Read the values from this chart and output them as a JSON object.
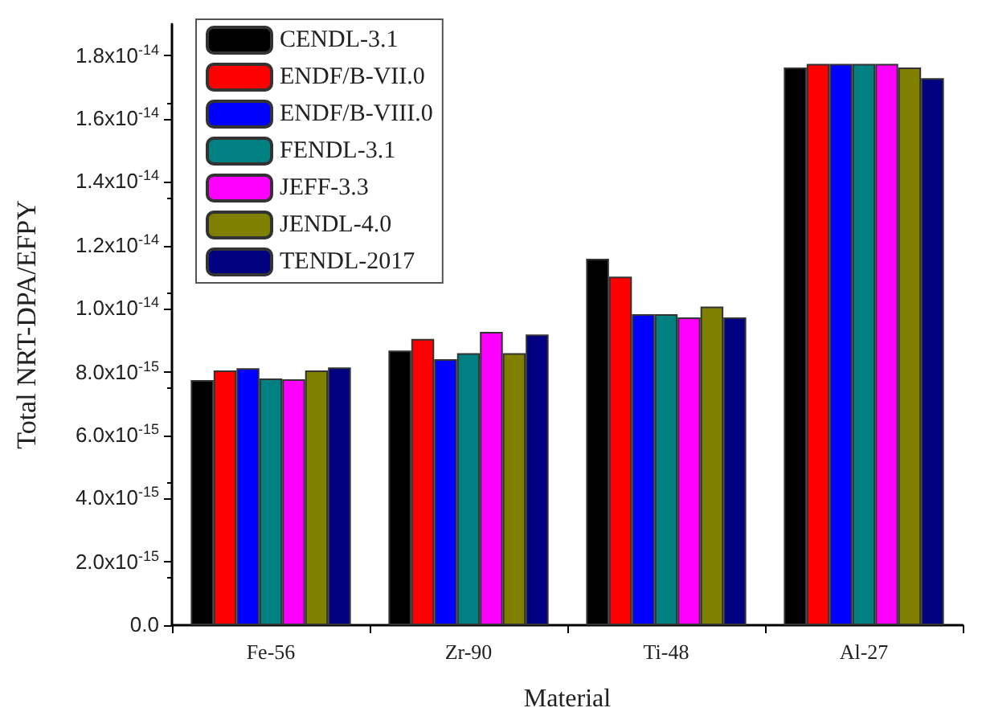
{
  "chart_data": {
    "type": "bar",
    "xlabel": "Material",
    "ylabel": "Total NRT-DPA/EFPY",
    "categories": [
      "Fe-56",
      "Zr-90",
      "Ti-48",
      "Al-27"
    ],
    "series": [
      {
        "name": "CENDL-3.1",
        "color": "#000000",
        "values": [
          7.75e-15,
          8.68e-15,
          1.158e-14,
          1.763e-14
        ]
      },
      {
        "name": "ENDF/B-VII.0",
        "color": "#ff0000",
        "values": [
          8.05e-15,
          9.05e-15,
          1.102e-14,
          1.774e-14
        ]
      },
      {
        "name": "ENDF/B-VIII.0",
        "color": "#0000ff",
        "values": [
          8.12e-15,
          8.41e-15,
          9.83e-15,
          1.774e-14
        ]
      },
      {
        "name": "FENDL-3.1",
        "color": "#008080",
        "values": [
          7.8e-15,
          8.6e-15,
          9.83e-15,
          1.774e-14
        ]
      },
      {
        "name": "JEFF-3.3",
        "color": "#ff00ff",
        "values": [
          7.77e-15,
          9.27e-15,
          9.73e-15,
          1.774e-14
        ]
      },
      {
        "name": "JENDL-4.0",
        "color": "#808000",
        "values": [
          8.05e-15,
          8.6e-15,
          1.007e-14,
          1.763e-14
        ]
      },
      {
        "name": "TENDL-2017",
        "color": "#000080",
        "values": [
          8.15e-15,
          9.19e-15,
          9.73e-15,
          1.729e-14
        ]
      }
    ],
    "ylim": [
      0,
      1.9e-14
    ],
    "yticks": [
      {
        "value": 0,
        "label": "0.0"
      },
      {
        "value": 2e-15,
        "label": "2.0x10$^{-15}$"
      },
      {
        "value": 4e-15,
        "label": "4.0x10$^{-15}$"
      },
      {
        "value": 6e-15,
        "label": "6.0x10$^{-15}$"
      },
      {
        "value": 8e-15,
        "label": "8.0x10$^{-15}$"
      },
      {
        "value": 1e-14,
        "label": "1.0x10$^{-14}$"
      },
      {
        "value": 1.2e-14,
        "label": "1.2x10$^{-14}$"
      },
      {
        "value": 1.4e-14,
        "label": "1.4x10$^{-14}$"
      },
      {
        "value": 1.6e-14,
        "label": "1.6x10$^{-14}$"
      },
      {
        "value": 1.8e-14,
        "label": "1.8x10$^{-14}$"
      }
    ],
    "grid": false,
    "legend": "top left"
  }
}
